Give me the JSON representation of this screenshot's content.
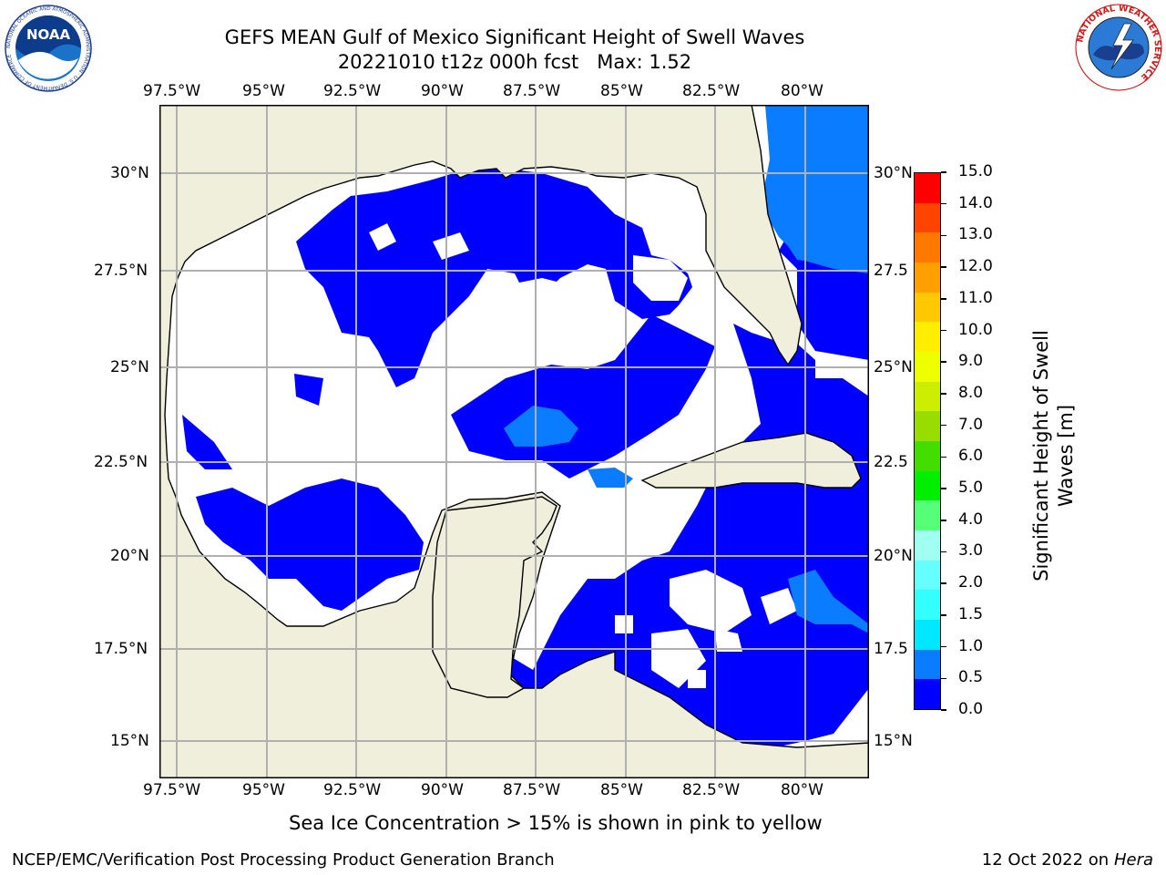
{
  "header": {
    "title_line1": "GEFS MEAN Gulf of Mexico Significant Height of Swell Waves",
    "title_line2": "20221010 t12z 000h fcst   Max: 1.52"
  },
  "logos": {
    "noaa_text": "NOAA",
    "noaa_ring_text": "NATIONAL OCEANIC AND ATMOSPHERIC ADMINISTRATION · U.S. DEPARTMENT OF COMMERCE",
    "nws_ring_text": "NATIONAL WEATHER SERVICE"
  },
  "map": {
    "lon_labels_top": [
      "97.5°W",
      "95°W",
      "92.5°W",
      "90°W",
      "87.5°W",
      "85°W",
      "82.5°W",
      "80°W"
    ],
    "lon_labels_bottom": [
      "97.5°W",
      "95°W",
      "92.5°W",
      "90°W",
      "87.5°W",
      "85°W",
      "82.5°W",
      "80°W"
    ],
    "lat_labels_left": [
      "30°N",
      "27.5°N",
      "25°N",
      "22.5°N",
      "20°N",
      "17.5°N",
      "15°N"
    ],
    "lat_labels_right": [
      "30°N",
      "27.5",
      "25°N",
      "22.5",
      "20°N",
      "17.5",
      "15°N"
    ],
    "colors": {
      "land": "#efefdc",
      "ocean_zero": "#ffffff",
      "level_0": "#0000ff",
      "level_05": "#0a7cff",
      "level_1": "#00ffff"
    }
  },
  "colorbar": {
    "label_line1": "Significant Height of Swell",
    "label_line2": "Waves [m]",
    "ticks": [
      "0.0",
      "0.5",
      "1.0",
      "1.5",
      "2.0",
      "3.0",
      "4.0",
      "5.0",
      "6.0",
      "7.0",
      "8.0",
      "9.0",
      "10.0",
      "11.0",
      "12.0",
      "13.0",
      "14.0",
      "15.0"
    ],
    "colors": [
      "#0000ff",
      "#0a7cff",
      "#00e8ff",
      "#33ffff",
      "#66ffff",
      "#a0fff0",
      "#55ff77",
      "#00ee00",
      "#44dd00",
      "#99dd00",
      "#ccee00",
      "#eeff00",
      "#ffee00",
      "#ffc800",
      "#ffa000",
      "#ff7800",
      "#ff4400",
      "#ff0000"
    ]
  },
  "notes": {
    "sea_ice": "Sea Ice Concentration > 15% is shown in pink to yellow"
  },
  "footer": {
    "left": "NCEP/EMC/Verification Post Processing Product Generation Branch",
    "right_prefix": "12 Oct 2022 on ",
    "right_host": "Hera"
  }
}
